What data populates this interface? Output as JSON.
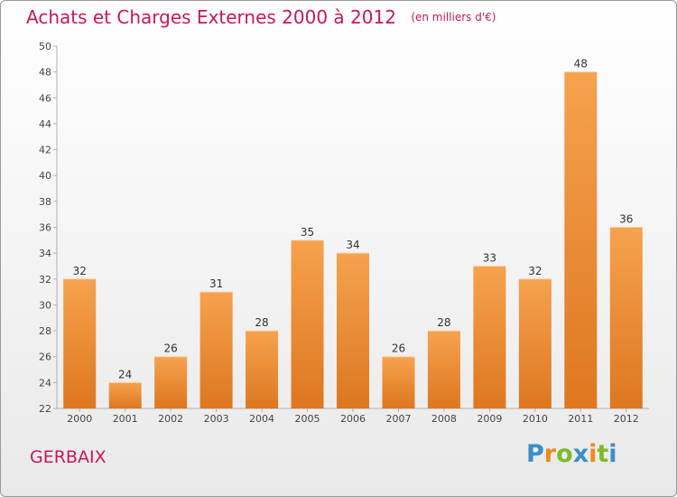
{
  "header": {
    "title": "Achats et Charges Externes 2000 à 2012",
    "unit_note": "(en milliers d'€)"
  },
  "footer": {
    "commune": "GERBAIX",
    "logo_text": "Proxiti"
  },
  "colors": {
    "title": "#c8175a",
    "bar_light": "#f6a24e",
    "bar_dark": "#dd7720",
    "logo_blue": "#3a8ec9",
    "logo_orange": "#f08a1c",
    "logo_green": "#7dbb2a"
  },
  "chart_data": {
    "type": "bar",
    "categories": [
      "2000",
      "2001",
      "2002",
      "2003",
      "2004",
      "2005",
      "2006",
      "2007",
      "2008",
      "2009",
      "2010",
      "2011",
      "2012"
    ],
    "values": [
      32,
      24,
      26,
      31,
      28,
      35,
      34,
      26,
      28,
      33,
      32,
      48,
      36
    ],
    "ylim": [
      22,
      50
    ],
    "yticks": [
      22,
      24,
      26,
      28,
      30,
      32,
      34,
      36,
      38,
      40,
      42,
      44,
      46,
      48,
      50
    ],
    "grid": false,
    "data_labels": true
  }
}
